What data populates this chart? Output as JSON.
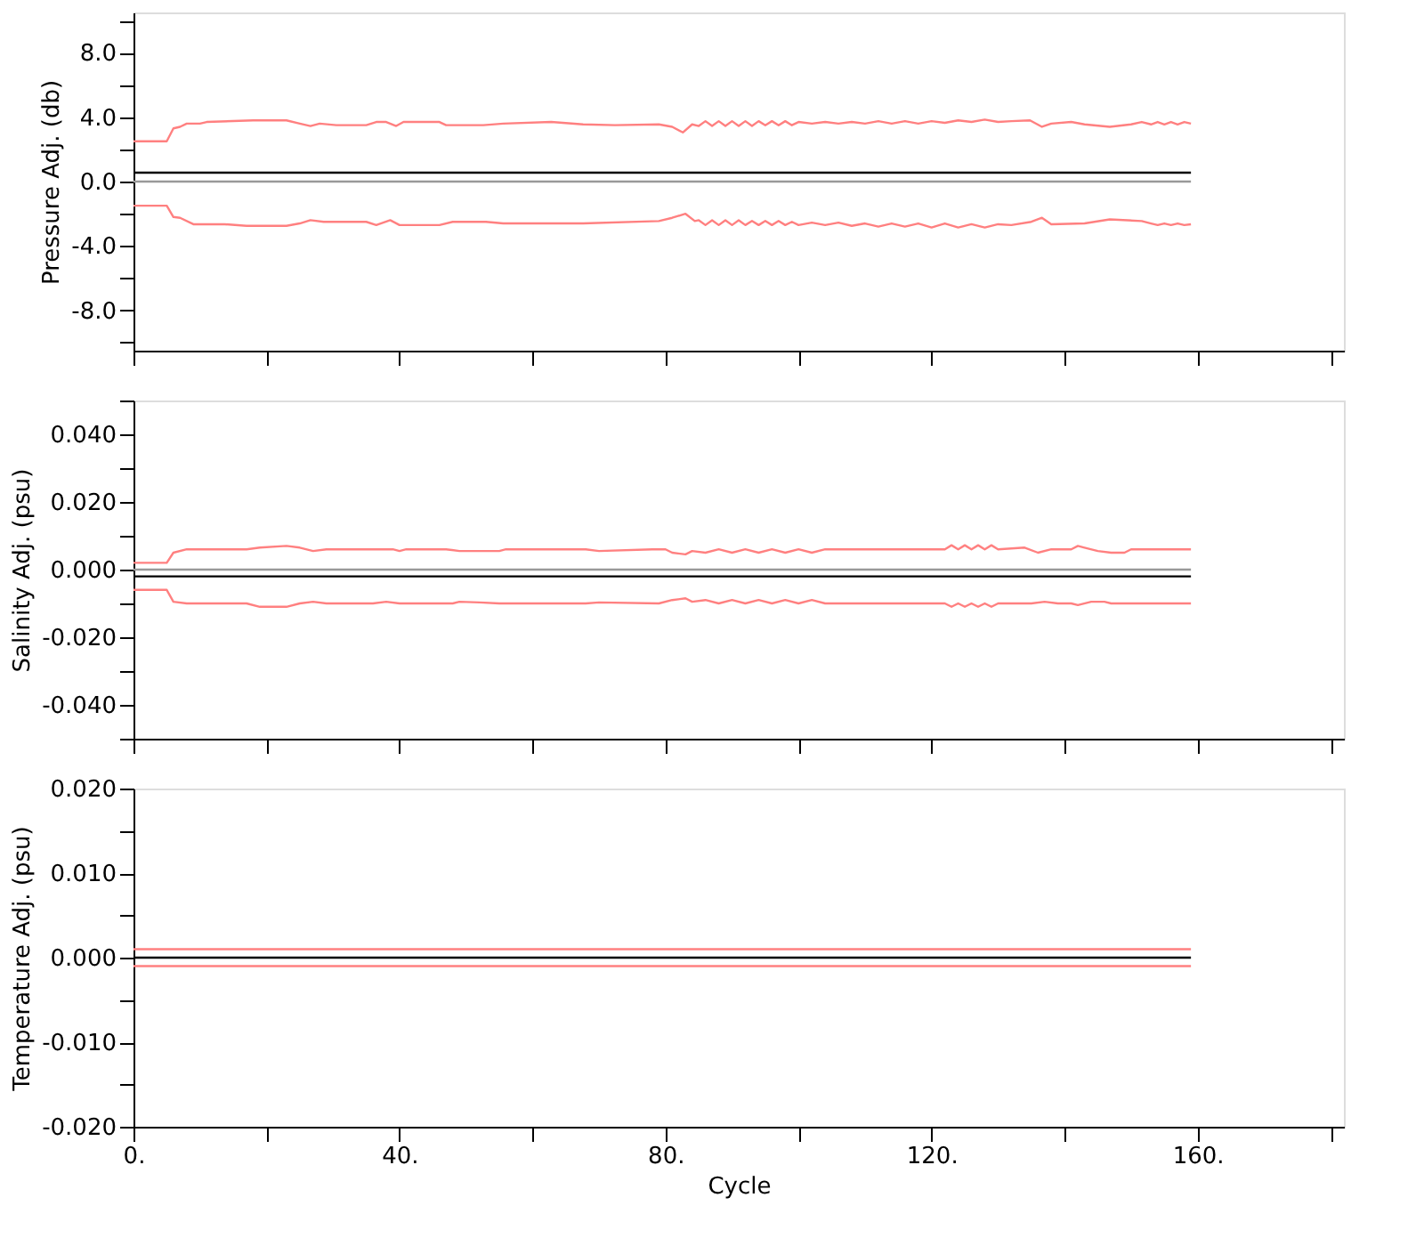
{
  "chart_data": [
    {
      "type": "line",
      "ylabel": "Pressure Adj. (db)",
      "tick_labels": "y",
      "grid": false,
      "xlim": [
        0,
        182
      ],
      "ylim": [
        -10.5,
        10.5
      ],
      "xticks": [
        {
          "value": 0,
          "label": null
        },
        {
          "value": 20,
          "label": null
        },
        {
          "value": 40,
          "label": null
        },
        {
          "value": 60,
          "label": null
        },
        {
          "value": 80,
          "label": null
        },
        {
          "value": 100,
          "label": null
        },
        {
          "value": 120,
          "label": null
        },
        {
          "value": 140,
          "label": null
        },
        {
          "value": 160,
          "label": null
        },
        {
          "value": 180,
          "label": null
        }
      ],
      "yticks": [
        {
          "value": -10,
          "label": null
        },
        {
          "value": -8,
          "label": "-8.0"
        },
        {
          "value": -6,
          "label": null
        },
        {
          "value": -4,
          "label": "-4.0"
        },
        {
          "value": -2,
          "label": null
        },
        {
          "value": 0,
          "label": "0.0"
        },
        {
          "value": 2,
          "label": null
        },
        {
          "value": 4,
          "label": "4.0"
        },
        {
          "value": 6,
          "label": null
        },
        {
          "value": 8,
          "label": "8.0"
        },
        {
          "value": 10,
          "label": null
        }
      ],
      "series": [
        {
          "color": "#ff8080",
          "x": [
            0,
            5,
            6,
            7,
            8,
            10,
            11,
            18,
            23,
            25,
            26.6,
            28,
            30.5,
            35,
            36.5,
            38,
            39.5,
            40.6,
            43.6,
            46,
            47,
            52.6,
            55.6,
            62.8,
            67.6,
            72.4,
            79,
            81,
            82.6,
            84,
            85,
            86,
            87,
            88,
            89,
            90,
            91,
            92,
            93,
            94,
            95,
            96,
            97,
            98,
            99,
            100,
            102,
            104,
            106,
            108,
            110,
            112,
            114,
            116,
            118,
            120,
            122,
            124,
            126,
            128,
            130,
            132,
            134.8,
            136.6,
            138,
            141,
            143,
            146.8,
            150,
            151.6,
            153,
            154,
            155,
            156,
            157,
            158,
            159
          ],
          "values": [
            2.5,
            2.5,
            3.3,
            3.4,
            3.6,
            3.6,
            3.7,
            3.8,
            3.8,
            3.6,
            3.45,
            3.6,
            3.5,
            3.5,
            3.7,
            3.7,
            3.45,
            3.7,
            3.7,
            3.7,
            3.5,
            3.5,
            3.6,
            3.7,
            3.55,
            3.5,
            3.55,
            3.4,
            3.05,
            3.55,
            3.45,
            3.75,
            3.45,
            3.75,
            3.45,
            3.75,
            3.45,
            3.75,
            3.45,
            3.75,
            3.5,
            3.75,
            3.5,
            3.75,
            3.5,
            3.7,
            3.6,
            3.7,
            3.6,
            3.7,
            3.6,
            3.75,
            3.6,
            3.75,
            3.6,
            3.75,
            3.65,
            3.8,
            3.7,
            3.85,
            3.7,
            3.75,
            3.8,
            3.4,
            3.6,
            3.7,
            3.55,
            3.4,
            3.55,
            3.7,
            3.55,
            3.7,
            3.55,
            3.7,
            3.55,
            3.7,
            3.6
          ]
        },
        {
          "color": "#ff8080",
          "x": [
            0,
            5,
            6,
            7,
            9,
            13.7,
            17,
            23,
            25,
            26.6,
            28.6,
            35,
            36.5,
            38.6,
            40,
            46,
            48,
            53,
            55.6,
            67.6,
            79,
            81,
            83,
            84.4,
            85,
            86,
            87,
            88,
            89,
            90,
            91,
            92,
            93,
            94,
            95,
            96,
            97,
            98,
            99,
            100,
            102,
            104,
            106,
            108,
            110,
            112,
            114,
            116,
            118,
            120,
            122,
            124,
            126,
            128,
            130,
            132,
            135,
            136.6,
            138,
            143,
            146.8,
            151.6,
            153,
            154,
            155,
            156,
            157,
            158,
            159
          ],
          "values": [
            -1.5,
            -1.5,
            -2.2,
            -2.25,
            -2.65,
            -2.65,
            -2.75,
            -2.75,
            -2.6,
            -2.4,
            -2.5,
            -2.5,
            -2.7,
            -2.4,
            -2.7,
            -2.7,
            -2.5,
            -2.5,
            -2.6,
            -2.6,
            -2.45,
            -2.25,
            -2.0,
            -2.45,
            -2.4,
            -2.7,
            -2.4,
            -2.7,
            -2.4,
            -2.7,
            -2.4,
            -2.7,
            -2.45,
            -2.7,
            -2.45,
            -2.7,
            -2.45,
            -2.7,
            -2.5,
            -2.7,
            -2.55,
            -2.7,
            -2.55,
            -2.75,
            -2.6,
            -2.8,
            -2.6,
            -2.8,
            -2.6,
            -2.85,
            -2.6,
            -2.85,
            -2.65,
            -2.85,
            -2.65,
            -2.7,
            -2.5,
            -2.25,
            -2.65,
            -2.6,
            -2.35,
            -2.45,
            -2.6,
            -2.7,
            -2.6,
            -2.7,
            -2.6,
            -2.7,
            -2.65
          ]
        },
        {
          "color": "#000000",
          "x": [
            0,
            159
          ],
          "values": [
            0.55,
            0.55
          ]
        },
        {
          "color": "#999999",
          "x": [
            0,
            159
          ],
          "values": [
            0,
            0
          ]
        }
      ]
    },
    {
      "type": "line",
      "ylabel": "Salinity Adj. (psu)",
      "tick_labels": "y",
      "grid": false,
      "xlim": [
        0,
        182
      ],
      "ylim": [
        -0.05,
        0.05
      ],
      "xticks": [
        {
          "value": 0,
          "label": null
        },
        {
          "value": 20,
          "label": null
        },
        {
          "value": 40,
          "label": null
        },
        {
          "value": 60,
          "label": null
        },
        {
          "value": 80,
          "label": null
        },
        {
          "value": 100,
          "label": null
        },
        {
          "value": 120,
          "label": null
        },
        {
          "value": 140,
          "label": null
        },
        {
          "value": 160,
          "label": null
        },
        {
          "value": 180,
          "label": null
        }
      ],
      "yticks": [
        {
          "value": -0.05,
          "label": null
        },
        {
          "value": -0.04,
          "label": "-0.040"
        },
        {
          "value": -0.03,
          "label": null
        },
        {
          "value": -0.02,
          "label": "-0.020"
        },
        {
          "value": -0.01,
          "label": null
        },
        {
          "value": 0,
          "label": "0.000"
        },
        {
          "value": 0.01,
          "label": null
        },
        {
          "value": 0.02,
          "label": "0.020"
        },
        {
          "value": 0.03,
          "label": null
        },
        {
          "value": 0.04,
          "label": "0.040"
        },
        {
          "value": 0.05,
          "label": null
        }
      ],
      "series": [
        {
          "color": "#ff8080",
          "x": [
            0,
            5,
            6,
            8,
            17,
            19,
            23,
            25,
            27,
            29,
            39,
            40,
            41,
            47,
            49,
            55,
            56,
            68,
            70,
            78,
            80,
            81,
            83,
            84,
            86,
            88,
            90,
            92,
            94,
            96,
            98,
            100,
            102,
            104,
            122,
            123,
            124,
            125,
            126,
            127,
            128,
            129,
            130,
            134,
            136,
            138,
            141,
            142,
            143,
            145,
            147,
            149,
            150,
            159
          ],
          "values": [
            0.002,
            0.002,
            0.005,
            0.006,
            0.006,
            0.0065,
            0.007,
            0.0065,
            0.0055,
            0.006,
            0.006,
            0.0055,
            0.006,
            0.006,
            0.0055,
            0.0055,
            0.006,
            0.006,
            0.0055,
            0.006,
            0.006,
            0.005,
            0.0045,
            0.0055,
            0.005,
            0.006,
            0.005,
            0.006,
            0.005,
            0.006,
            0.005,
            0.006,
            0.005,
            0.006,
            0.006,
            0.0072,
            0.006,
            0.0072,
            0.006,
            0.0072,
            0.006,
            0.0072,
            0.006,
            0.0065,
            0.005,
            0.006,
            0.006,
            0.007,
            0.0065,
            0.0055,
            0.005,
            0.005,
            0.006,
            0.006
          ]
        },
        {
          "color": "#ff8080",
          "x": [
            0,
            5,
            6,
            8,
            17,
            19,
            23,
            25,
            27,
            29,
            36,
            38,
            40,
            48,
            49,
            52,
            55,
            68,
            70,
            79,
            81,
            83,
            84,
            86,
            88,
            90,
            92,
            94,
            96,
            98,
            100,
            102,
            104,
            122,
            123,
            124,
            125,
            126,
            127,
            128,
            129,
            130,
            135,
            137,
            139,
            141,
            142,
            144,
            146,
            147,
            150,
            159
          ],
          "values": [
            -0.006,
            -0.006,
            -0.0095,
            -0.01,
            -0.01,
            -0.011,
            -0.011,
            -0.01,
            -0.0095,
            -0.01,
            -0.01,
            -0.0095,
            -0.01,
            -0.01,
            -0.0095,
            -0.0097,
            -0.01,
            -0.01,
            -0.0097,
            -0.01,
            -0.009,
            -0.0085,
            -0.0095,
            -0.009,
            -0.01,
            -0.009,
            -0.01,
            -0.009,
            -0.01,
            -0.009,
            -0.01,
            -0.009,
            -0.01,
            -0.01,
            -0.011,
            -0.01,
            -0.011,
            -0.01,
            -0.011,
            -0.01,
            -0.011,
            -0.01,
            -0.01,
            -0.0095,
            -0.01,
            -0.01,
            -0.0105,
            -0.0095,
            -0.0095,
            -0.01,
            -0.01,
            -0.01
          ]
        },
        {
          "color": "#000000",
          "x": [
            0,
            159
          ],
          "values": [
            -0.002,
            -0.002
          ]
        },
        {
          "color": "#999999",
          "x": [
            0,
            159
          ],
          "values": [
            0,
            0
          ]
        }
      ]
    },
    {
      "type": "line",
      "ylabel": "Temperature Adj. (psu)",
      "xlabel": "Cycle",
      "grid": false,
      "xlim": [
        0,
        182
      ],
      "ylim": [
        -0.02,
        0.02
      ],
      "xticks": [
        {
          "value": 0,
          "label": "0."
        },
        {
          "value": 20,
          "label": null
        },
        {
          "value": 40,
          "label": "40."
        },
        {
          "value": 60,
          "label": null
        },
        {
          "value": 80,
          "label": "80."
        },
        {
          "value": 100,
          "label": null
        },
        {
          "value": 120,
          "label": "120."
        },
        {
          "value": 140,
          "label": null
        },
        {
          "value": 160,
          "label": "160."
        },
        {
          "value": 180,
          "label": null
        }
      ],
      "yticks": [
        {
          "value": -0.02,
          "label": "-0.020"
        },
        {
          "value": -0.015,
          "label": null
        },
        {
          "value": -0.01,
          "label": "-0.010"
        },
        {
          "value": -0.005,
          "label": null
        },
        {
          "value": 0,
          "label": "0.000"
        },
        {
          "value": 0.005,
          "label": null
        },
        {
          "value": 0.01,
          "label": "0.010"
        },
        {
          "value": 0.015,
          "label": null
        },
        {
          "value": 0.02,
          "label": "0.020"
        }
      ],
      "series": [
        {
          "color": "#ff8080",
          "x": [
            0,
            159
          ],
          "values": [
            0.001,
            0.001
          ]
        },
        {
          "color": "#ff8080",
          "x": [
            0,
            159
          ],
          "values": [
            -0.001,
            -0.001
          ]
        },
        {
          "color": "#000000",
          "x": [
            0,
            159
          ],
          "values": [
            0,
            0
          ]
        }
      ]
    }
  ]
}
